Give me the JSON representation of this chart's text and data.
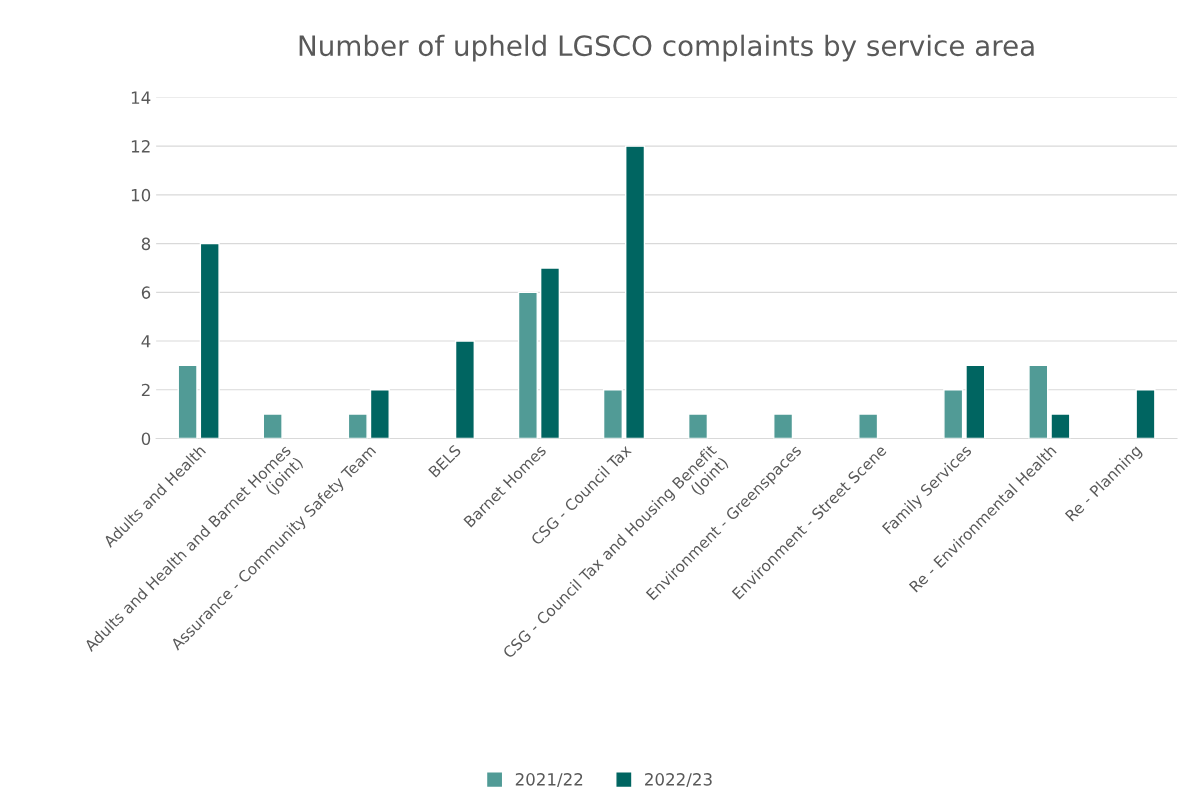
{
  "chart_data": {
    "type": "bar",
    "title": "Number of upheld LGSCO complaints by service area",
    "categories": [
      "Adults and Health",
      "Adults and Health and Barnet Homes\n(joint)",
      "Assurance - Community Safety Team",
      "BELS",
      "Barnet Homes",
      "CSG - Council Tax",
      "CSG - Council Tax and Housing Benefit\n(Joint)",
      "Environment - Greenspaces",
      "Environment - Street Scene",
      "Family Services",
      "Re - Environmental Health",
      "Re - Planning"
    ],
    "series": [
      {
        "name": "2021/22",
        "color": "#519b96",
        "values": [
          3,
          1,
          1,
          null,
          6,
          2,
          1,
          1,
          1,
          2,
          3,
          null
        ]
      },
      {
        "name": "2022/23",
        "color": "#006561",
        "values": [
          8,
          null,
          2,
          4,
          7,
          12,
          null,
          null,
          null,
          3,
          1,
          2
        ]
      }
    ],
    "ylim": [
      0,
      14
    ],
    "yticks": [
      0,
      2,
      4,
      6,
      8,
      10,
      12,
      14
    ],
    "grid": "y",
    "legend": "bottom"
  }
}
